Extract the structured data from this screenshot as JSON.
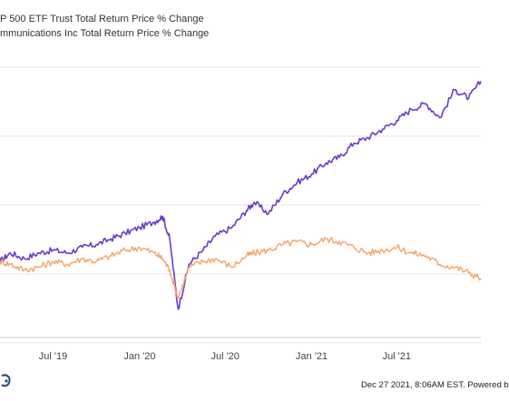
{
  "chart_data": {
    "type": "line",
    "x_ticks": [
      "Jul '19",
      "Jan '20",
      "Jul '20",
      "Jan '21",
      "Jul '21"
    ],
    "xlim": [
      "2019-03-10",
      "2021-12-27"
    ],
    "ylim": [
      -30,
      75
    ],
    "grid": true,
    "legend_position": "top-left",
    "series": [
      {
        "name": "P 500 ETF Trust Total Return Price % Change",
        "color": "#6a3cc8",
        "points": [
          [
            "2019-03-10",
            -3
          ],
          [
            "2019-04-01",
            0
          ],
          [
            "2019-05-01",
            -2
          ],
          [
            "2019-06-01",
            0
          ],
          [
            "2019-07-01",
            1
          ],
          [
            "2019-08-01",
            0
          ],
          [
            "2019-09-01",
            2
          ],
          [
            "2019-10-01",
            3
          ],
          [
            "2019-11-01",
            5
          ],
          [
            "2019-12-01",
            7
          ],
          [
            "2020-01-01",
            9
          ],
          [
            "2020-02-01",
            11
          ],
          [
            "2020-02-19",
            13
          ],
          [
            "2020-03-05",
            5
          ],
          [
            "2020-03-23",
            -20
          ],
          [
            "2020-04-15",
            -4
          ],
          [
            "2020-05-15",
            1
          ],
          [
            "2020-06-10",
            6
          ],
          [
            "2020-07-15",
            9
          ],
          [
            "2020-08-15",
            15
          ],
          [
            "2020-09-01",
            18
          ],
          [
            "2020-10-01",
            14
          ],
          [
            "2020-11-01",
            21
          ],
          [
            "2020-12-01",
            25
          ],
          [
            "2021-01-01",
            28
          ],
          [
            "2021-02-01",
            32
          ],
          [
            "2021-03-01",
            34
          ],
          [
            "2021-04-01",
            39
          ],
          [
            "2021-05-01",
            41
          ],
          [
            "2021-06-01",
            44
          ],
          [
            "2021-07-01",
            47
          ],
          [
            "2021-08-01",
            51
          ],
          [
            "2021-09-01",
            53
          ],
          [
            "2021-10-01",
            48
          ],
          [
            "2021-11-01",
            58
          ],
          [
            "2021-12-01",
            55
          ],
          [
            "2021-12-27",
            61
          ]
        ]
      },
      {
        "name": "mmunications Inc Total Return Price % Change",
        "color": "#f4a46a",
        "points": [
          [
            "2019-03-10",
            -3
          ],
          [
            "2019-04-01",
            -4
          ],
          [
            "2019-05-01",
            -6
          ],
          [
            "2019-06-01",
            -5
          ],
          [
            "2019-07-01",
            -3
          ],
          [
            "2019-08-01",
            -4
          ],
          [
            "2019-09-01",
            -2
          ],
          [
            "2019-10-01",
            -3
          ],
          [
            "2019-11-01",
            -1
          ],
          [
            "2019-12-01",
            1
          ],
          [
            "2020-01-01",
            2
          ],
          [
            "2020-02-01",
            0
          ],
          [
            "2020-02-19",
            -2
          ],
          [
            "2020-03-05",
            -6
          ],
          [
            "2020-03-23",
            -16
          ],
          [
            "2020-04-15",
            -5
          ],
          [
            "2020-05-15",
            -3
          ],
          [
            "2020-06-10",
            -2
          ],
          [
            "2020-07-15",
            -5
          ],
          [
            "2020-08-15",
            -1
          ],
          [
            "2020-09-01",
            0
          ],
          [
            "2020-10-01",
            1
          ],
          [
            "2020-11-01",
            3
          ],
          [
            "2020-12-01",
            4
          ],
          [
            "2021-01-01",
            3
          ],
          [
            "2021-02-01",
            5
          ],
          [
            "2021-03-01",
            4
          ],
          [
            "2021-04-01",
            2
          ],
          [
            "2021-05-01",
            0
          ],
          [
            "2021-06-01",
            1
          ],
          [
            "2021-07-01",
            2
          ],
          [
            "2021-08-01",
            0
          ],
          [
            "2021-09-01",
            -1
          ],
          [
            "2021-10-01",
            -4
          ],
          [
            "2021-11-01",
            -5
          ],
          [
            "2021-12-01",
            -7
          ],
          [
            "2021-12-27",
            -9
          ]
        ]
      }
    ]
  },
  "footer": {
    "timestamp": "Dec 27 2021, 8:06AM EST.  Powered b"
  },
  "colors": {
    "grid": "#e6e6e6",
    "tick_text": "#444444",
    "axis": "#cccccc"
  },
  "icons": {
    "logo": "ycharts-logo-icon"
  }
}
